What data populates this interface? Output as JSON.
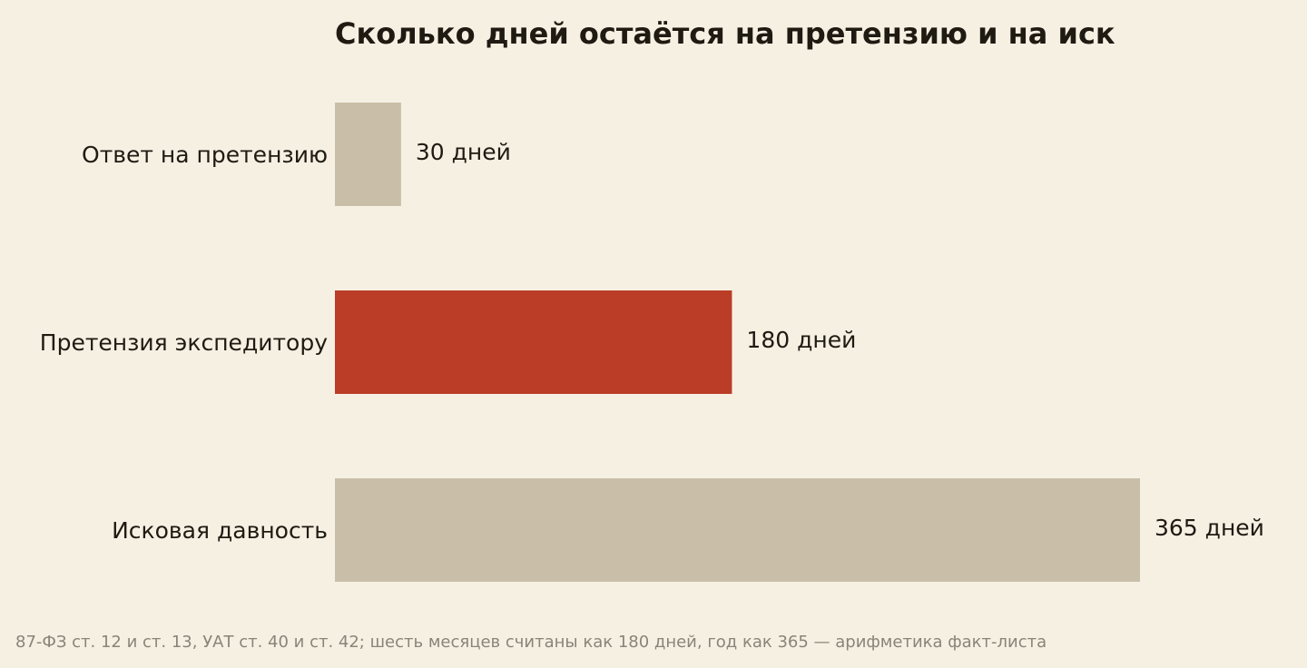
{
  "chart_data": {
    "type": "bar",
    "orientation": "horizontal",
    "title": "Сколько дней остаётся на претензию и на иск",
    "categories": [
      "Ответ на претензию",
      "Претензия экспедитору",
      "Исковая давность"
    ],
    "values": [
      30,
      180,
      365
    ],
    "value_labels": [
      "30 дней",
      "180 дней",
      "365 дней"
    ],
    "colors": [
      "#c9bfa8",
      "#bb3c27",
      "#c9bfa8"
    ],
    "xlim": [
      0,
      365
    ],
    "grid": false,
    "legend": "none"
  },
  "footnote": "87-ФЗ ст. 12 и ст. 13, УАТ ст. 40 и ст. 42; шесть месяцев считаны как 180 дней, год как 365 — арифметика факт-листа",
  "colors": {
    "background": "#f6f0e3",
    "text": "#1f1a12",
    "muted": "#8a8478"
  }
}
